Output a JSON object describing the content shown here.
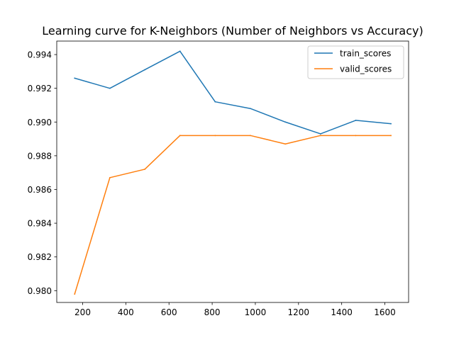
{
  "chart_data": {
    "type": "line",
    "title": "Learning curve for K-Neighbors (Number of Neighbors vs Accuracy)",
    "xlabel": "",
    "ylabel": "",
    "x": [
      163,
      326,
      488,
      651,
      814,
      977,
      1139,
      1302,
      1465,
      1628
    ],
    "xlim": [
      80,
      1710
    ],
    "ylim": [
      0.9793,
      0.9948
    ],
    "xticks": [
      200,
      400,
      600,
      800,
      1000,
      1200,
      1400,
      1600
    ],
    "xtick_labels": [
      "200",
      "400",
      "600",
      "800",
      "1000",
      "1200",
      "1400",
      "1600"
    ],
    "yticks": [
      0.98,
      0.982,
      0.984,
      0.986,
      0.988,
      0.99,
      0.992,
      0.994
    ],
    "ytick_labels": [
      "0.980",
      "0.982",
      "0.984",
      "0.986",
      "0.988",
      "0.990",
      "0.992",
      "0.994"
    ],
    "grid": false,
    "legend_position": "top-right",
    "series": [
      {
        "name": "train_scores",
        "color": "#1f77b4",
        "values": [
          0.9926,
          0.992,
          0.9931,
          0.9942,
          0.9912,
          0.9908,
          0.99,
          0.9893,
          0.9901,
          0.9899
        ]
      },
      {
        "name": "valid_scores",
        "color": "#ff7f0e",
        "values": [
          0.9798,
          0.9867,
          0.9872,
          0.9892,
          0.9892,
          0.9892,
          0.9887,
          0.9892,
          0.9892,
          0.9892
        ]
      }
    ]
  }
}
